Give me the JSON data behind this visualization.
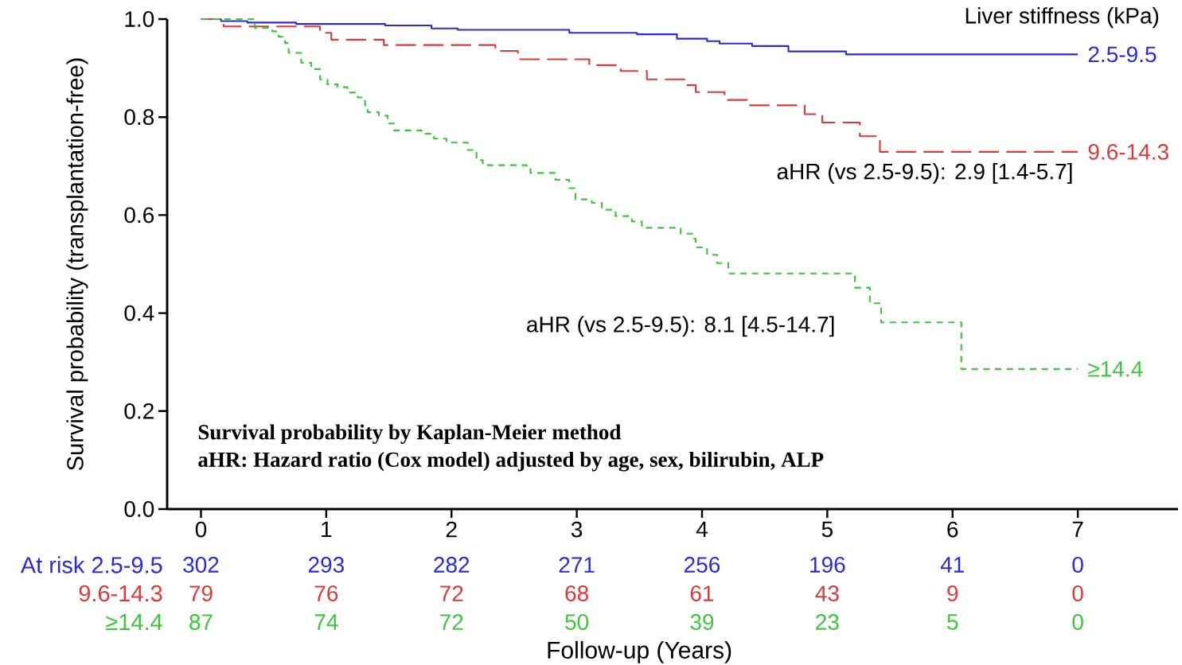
{
  "chart_data": [
    {
      "type": "step",
      "ylabel": "Survival probability (transplantation-free)",
      "xlabel": "Follow-up (Years)",
      "legend_title": "Liver stiffness (kPa)",
      "annotations": [
        "aHR (vs 2.5-9.5): 2.9 [1.4-5.7]",
        "aHR (vs 2.5-9.5): 8.1 [4.5-14.7]",
        "Survival probability by Kaplan-Meier method",
        "aHR: Hazard ratio (Cox model) adjusted by age, sex, bilirubin, ALP"
      ],
      "xlim": [
        -0.27,
        7.8
      ],
      "ylim": [
        0,
        1.0
      ],
      "xticks": [
        0,
        1,
        2,
        3,
        4,
        5,
        6,
        7
      ],
      "yticks": [
        {
          "value": 0,
          "label": "0.0"
        },
        {
          "value": 0.2,
          "label": "0.2"
        },
        {
          "value": 0.4,
          "label": "0.4"
        },
        {
          "value": 0.6,
          "label": "0.6"
        },
        {
          "value": 0.8,
          "label": "0.8"
        },
        {
          "value": 1.0,
          "label": "1.0"
        }
      ],
      "series": [
        {
          "name": "2.5-9.5",
          "color": "#2b2bd9",
          "line_style": "solid",
          "x": [
            0,
            0.16,
            0.37,
            0.76,
            1.47,
            1.84,
            2.05,
            2.94,
            3.48,
            3.8,
            4.04,
            4.14,
            4.4,
            4.69,
            5.15,
            7.0
          ],
          "values": [
            1.0,
            0.996,
            0.993,
            0.99,
            0.987,
            0.981,
            0.978,
            0.972,
            0.969,
            0.96,
            0.955,
            0.95,
            0.945,
            0.934,
            0.928,
            0.928
          ]
        },
        {
          "name": "9.6-14.3",
          "color": "#d93b3b",
          "line_style": "dashed",
          "x": [
            0,
            0.18,
            0.95,
            1.04,
            1.46,
            2.35,
            2.53,
            3.1,
            3.35,
            3.56,
            3.86,
            3.95,
            4.18,
            4.36,
            4.82,
            4.96,
            5.26,
            5.42,
            7.0
          ],
          "values": [
            1.0,
            0.985,
            0.972,
            0.958,
            0.947,
            0.935,
            0.918,
            0.906,
            0.894,
            0.877,
            0.865,
            0.851,
            0.835,
            0.824,
            0.806,
            0.789,
            0.761,
            0.729,
            0.729
          ]
        },
        {
          "name": "≥14.4",
          "color": "#3cc63c",
          "line_style": "dotted",
          "x": [
            0,
            0.43,
            0.57,
            0.62,
            0.67,
            0.7,
            0.8,
            0.88,
            0.95,
            1.01,
            1.09,
            1.17,
            1.25,
            1.31,
            1.33,
            1.42,
            1.49,
            1.54,
            1.76,
            1.86,
            1.96,
            2.13,
            2.2,
            2.25,
            2.6,
            2.63,
            2.83,
            2.94,
            2.99,
            3.12,
            3.2,
            3.31,
            3.44,
            3.52,
            3.83,
            3.93,
            3.95,
            4.04,
            4.12,
            4.21,
            5.22,
            5.34,
            5.43,
            6.07,
            7.0
          ],
          "values": [
            1.0,
            0.982,
            0.975,
            0.964,
            0.951,
            0.931,
            0.911,
            0.898,
            0.877,
            0.867,
            0.861,
            0.85,
            0.84,
            0.824,
            0.81,
            0.803,
            0.787,
            0.773,
            0.766,
            0.756,
            0.748,
            0.733,
            0.712,
            0.702,
            0.696,
            0.686,
            0.672,
            0.655,
            0.632,
            0.625,
            0.611,
            0.598,
            0.587,
            0.574,
            0.562,
            0.552,
            0.534,
            0.519,
            0.502,
            0.481,
            0.452,
            0.42,
            0.381,
            0.286,
            0.286
          ]
        }
      ]
    },
    {
      "type": "other",
      "annotations": [
        "At risk 2.5-9.5",
        "302",
        "293",
        "282",
        "271",
        "256",
        "196",
        "41",
        "0",
        "9.6-14.3",
        "79",
        "76",
        "72",
        "68",
        "61",
        "43",
        "9",
        "0",
        "≥14.4",
        "87",
        "74",
        "72",
        "50",
        "39",
        "23",
        "5",
        "0"
      ]
    }
  ]
}
